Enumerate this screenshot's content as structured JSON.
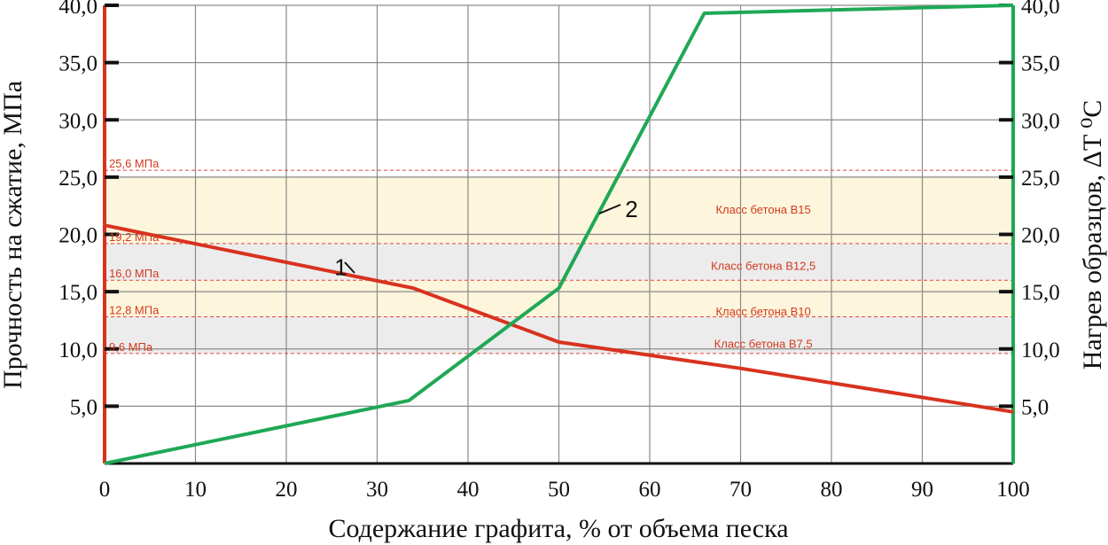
{
  "chart_data": {
    "type": "line",
    "xlabel": "Содержание графита, % от объема песка",
    "ylabel_left": "Прочность на сжатие, МПа",
    "ylabel_right": "Нагрев образцов, ΔT ⁰C",
    "xlim": [
      0,
      100
    ],
    "ylim_left": [
      0,
      40
    ],
    "ylim_right": [
      0,
      40
    ],
    "x_ticks": [
      "0",
      "10",
      "20",
      "30",
      "40",
      "50",
      "60",
      "70",
      "80",
      "90",
      "100"
    ],
    "y_ticks_left": [
      "5,0",
      "10,0",
      "15,0",
      "20,0",
      "25,0",
      "30,0",
      "35,0",
      "40,0"
    ],
    "y_ticks_right": [
      "5,0",
      "10,0",
      "15,0",
      "20,0",
      "25,0",
      "30,0",
      "35,0",
      "40,0"
    ],
    "grid": true,
    "series": [
      {
        "name": "1",
        "axis": "left",
        "color": "#d8321e",
        "points": [
          [
            0,
            20.8
          ],
          [
            34,
            15.3
          ],
          [
            50,
            10.6
          ],
          [
            70,
            8.3
          ],
          [
            100,
            4.5
          ]
        ]
      },
      {
        "name": "2",
        "axis": "right",
        "color": "#1fa855",
        "points": [
          [
            0,
            0
          ],
          [
            33.5,
            5.5
          ],
          [
            50,
            15.3
          ],
          [
            66,
            39.3
          ],
          [
            100,
            40
          ]
        ]
      }
    ],
    "levels": [
      {
        "value": 25.6,
        "label": "25,6 МПа"
      },
      {
        "value": 19.2,
        "label": "19,2 МПа"
      },
      {
        "value": 16.0,
        "label": "16,0 МПа"
      },
      {
        "value": 12.8,
        "label": "12,8 МПа"
      },
      {
        "value": 9.6,
        "label": "9,6 МПа"
      }
    ],
    "bands": [
      {
        "from": 19.2,
        "to": 25.0,
        "fill": "#fdf5dc",
        "label": "Класс бетона B15",
        "label_value": 22.2
      },
      {
        "from": 16.0,
        "to": 19.2,
        "fill": "#ececec",
        "label": "Класс бетона B12,5",
        "label_value": 17.3
      },
      {
        "from": 12.8,
        "to": 16.0,
        "fill": "#fdf5dc",
        "label": "Класс бетона B10",
        "label_value": 13.3
      },
      {
        "from": 9.6,
        "to": 12.8,
        "fill": "#ececec",
        "label": "Класс бетона B7,5",
        "label_value": 10.5
      }
    ],
    "curve_labels": [
      {
        "text": "1",
        "x": 26,
        "y": 17.2
      },
      {
        "text": "2",
        "x": 58,
        "y": 22.3
      }
    ]
  }
}
